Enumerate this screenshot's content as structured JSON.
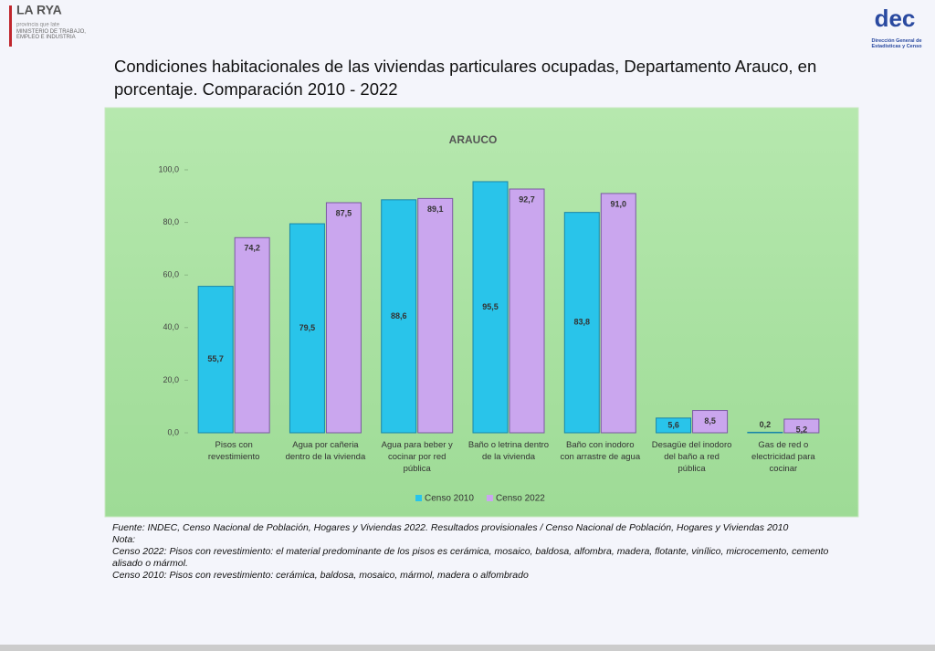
{
  "header": {
    "logo_text": "provincia que late",
    "ministry": "MINISTERIO DE TRABAJO, EMPLEO E INDUSTRIA",
    "right_logo": "dec",
    "right_logo_caption": "Dirección General de Estadísticas y Censo"
  },
  "chart_data": {
    "type": "bar",
    "title": "Condiciones habitacionales de las viviendas particulares ocupadas, Departamento Arauco, en porcentaje. Comparación 2010 - 2022",
    "subtitle": "ARAUCO",
    "categories": [
      "Pisos con revestimiento",
      "Agua por cañeria dentro de la vivienda",
      "Agua para beber y cocinar por red pública",
      "Baño o letrina dentro de la vivienda",
      "Baño con inodoro con arrastre de agua",
      "Desagüe del inodoro del baño a red pública",
      "Gas de red o electricidad para cocinar"
    ],
    "series": [
      {
        "name": "Censo 2010",
        "color": "#29c4ea",
        "values": [
          55.7,
          79.5,
          88.6,
          95.5,
          83.8,
          5.6,
          0.2
        ],
        "value_labels": [
          "55,7",
          "79,5",
          "88,6",
          "95,5",
          "83,8",
          "5,6",
          "0,2"
        ]
      },
      {
        "name": "Censo 2022",
        "color": "#caa6ee",
        "values": [
          74.2,
          87.5,
          89.1,
          92.7,
          91.0,
          8.5,
          5.2
        ],
        "value_labels": [
          "74,2",
          "87,5",
          "89,1",
          "92,7",
          "91,0",
          "8,5",
          "5,2"
        ]
      }
    ],
    "ylim": [
      0,
      100
    ],
    "yticks": [
      {
        "value": 0,
        "label": "0,0"
      },
      {
        "value": 20,
        "label": "20,0"
      },
      {
        "value": 40,
        "label": "40,0"
      },
      {
        "value": 60,
        "label": "60,0"
      },
      {
        "value": 80,
        "label": "80,0"
      },
      {
        "value": 100,
        "label": "100,0"
      }
    ],
    "legend": "bottom"
  },
  "notes": [
    "Fuente: INDEC, Censo Nacional de Población, Hogares y Viviendas 2022. Resultados provisionales / Censo Nacional de Población, Hogares y Viviendas 2010",
    "Nota:",
    "Censo 2022: Pisos con revestimiento: el material predominante de los pisos es cerámica, mosaico, baldosa, alfombra, madera, flotante, vinílico, microcemento, cemento alisado o mármol.",
    "Censo 2010: Pisos con revestimiento: cerámica, baldosa, mosaico, mármol, madera o alfombrado"
  ]
}
